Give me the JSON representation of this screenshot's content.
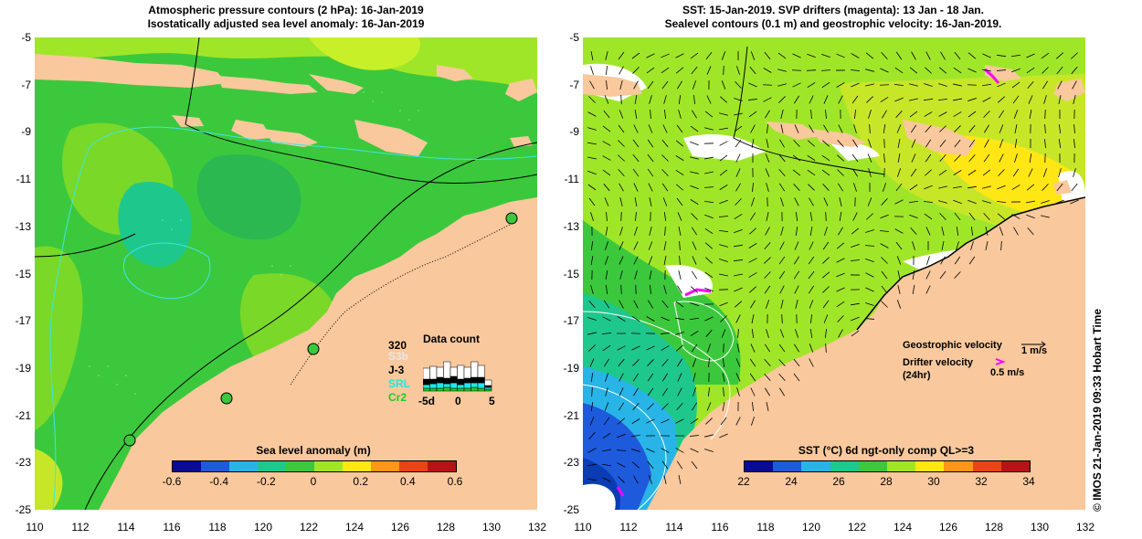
{
  "left_panel": {
    "title_line1": "Atmospheric pressure contours (2 hPa): 16-Jan-2019",
    "title_line2": "Isostatically adjusted sea level anomaly: 16-Jan-2019",
    "colorbar": {
      "title": "Sea level anomaly (m)",
      "ticks": [
        "-0.6",
        "-0.4",
        "-0.2",
        "0",
        "0.2",
        "0.4",
        "0.6"
      ],
      "colors": [
        "#0a0a96",
        "#1e5adc",
        "#28b4e6",
        "#1ec88c",
        "#3cc83c",
        "#a0e628",
        "#ffe614",
        "#ff9614",
        "#e64614",
        "#b41414"
      ]
    },
    "data_count": {
      "title": "Data count",
      "max_label": "320",
      "missions": [
        {
          "name": "S3b",
          "color": "#e8e8e8"
        },
        {
          "name": "J-3",
          "color": "#000000"
        },
        {
          "name": "SRL",
          "color": "#22e6e6"
        },
        {
          "name": "Cr2",
          "color": "#22cc22"
        }
      ],
      "axis_labels": [
        "-5d",
        "0",
        "5"
      ],
      "bars": [
        {
          "white": 0.6,
          "black": 0.3,
          "cyan": 0.2,
          "green": 0.15
        },
        {
          "white": 0.7,
          "black": 0.25,
          "cyan": 0.25,
          "green": 0.15
        },
        {
          "white": 0.55,
          "black": 0.3,
          "cyan": 0.3,
          "green": 0.15
        },
        {
          "white": 0.9,
          "black": 0.3,
          "cyan": 0.2,
          "green": 0.2
        },
        {
          "white": 0.5,
          "black": 0.35,
          "cyan": 0.3,
          "green": 0.15
        },
        {
          "white": 0.75,
          "black": 0.3,
          "cyan": 0.2,
          "green": 0.15
        },
        {
          "white": 0.6,
          "black": 0.25,
          "cyan": 0.3,
          "green": 0.15
        },
        {
          "white": 0.85,
          "black": 0.3,
          "cyan": 0.25,
          "green": 0.2
        },
        {
          "white": 0.65,
          "black": 0.3,
          "cyan": 0.3,
          "green": 0.15
        },
        {
          "white": 0.3,
          "black": 0.1,
          "cyan": 0.1,
          "green": 0.1
        }
      ]
    }
  },
  "right_panel": {
    "title_line1": "SST: 15-Jan-2019. SVP drifters (magenta): 13 Jan - 18 Jan.",
    "title_line2": "Sealevel contours (0.1 m) and geostrophic velocity: 16-Jan-2019.",
    "colorbar": {
      "title": "SST (°C) 6d ngt-only comp QL>=3",
      "ticks": [
        "22",
        "24",
        "26",
        "28",
        "30",
        "32",
        "34"
      ],
      "colors": [
        "#0a0a96",
        "#1e5adc",
        "#28b4e6",
        "#1ec88c",
        "#3cc83c",
        "#a0e628",
        "#ffe614",
        "#ff9614",
        "#e64614",
        "#b41414"
      ]
    },
    "legend": {
      "geostrophic": "Geostrophic velocity",
      "geostrophic_scale": "1 m/s",
      "drifter_line1": "Drifter velocity",
      "drifter_line2": "(24hr)",
      "drifter_scale": "0.5 m/s"
    },
    "side_text": "© IMOS 21-Jan-2019 09:33 Hobart Time"
  },
  "axes": {
    "y_ticks": [
      "-5",
      "-7",
      "-9",
      "-11",
      "-13",
      "-15",
      "-17",
      "-19",
      "-21",
      "-23",
      "-25"
    ],
    "x_ticks": [
      "110",
      "112",
      "114",
      "116",
      "118",
      "120",
      "122",
      "124",
      "126",
      "128",
      "130",
      "132"
    ]
  },
  "colors": {
    "land": "#f9c89c",
    "ocean_green": "#3cc83c",
    "ocean_light": "#7ad828",
    "ocean_yellow": "#c8e628",
    "ocean_blue": "#1e5adc",
    "drifter": "#ff00ff"
  }
}
